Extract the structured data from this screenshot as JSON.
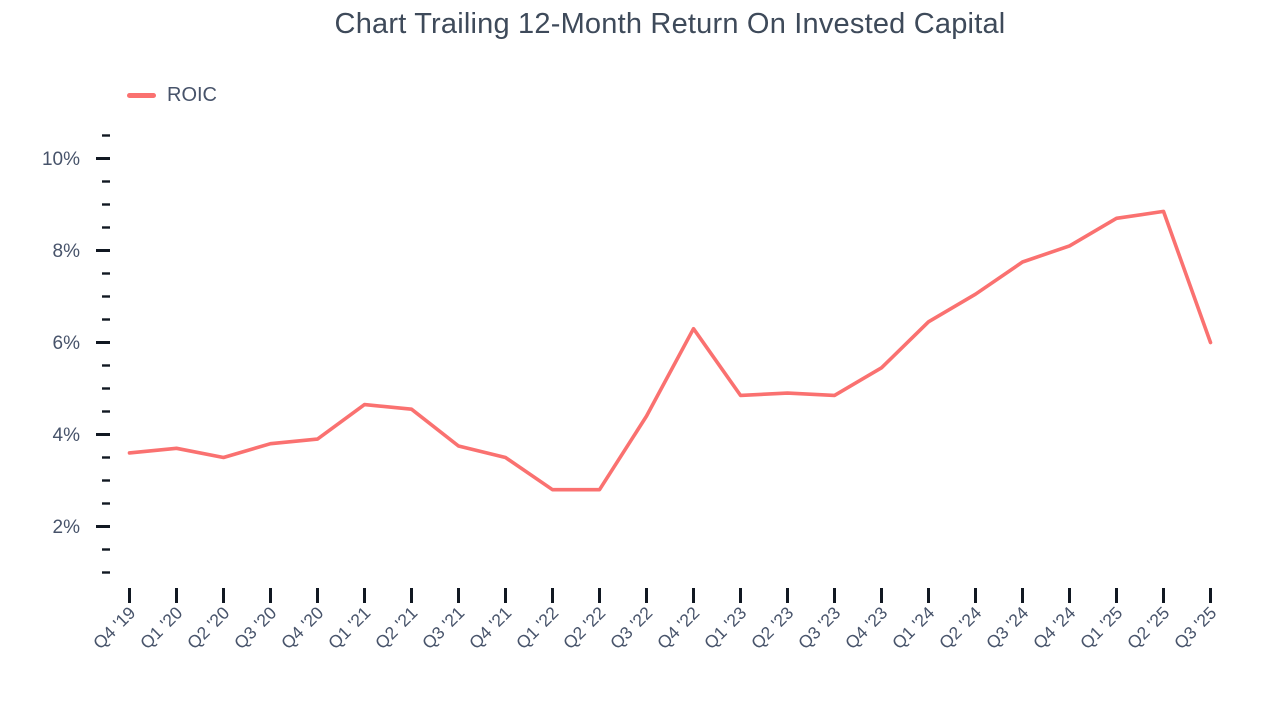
{
  "title": "Chart Trailing 12-Month Return On Invested Capital",
  "colors": {
    "line": "#fa7170",
    "axis_text": "#47536a",
    "title_text": "#3e4a5a",
    "tick_mark": "#111822",
    "background": "#ffffff"
  },
  "legend": {
    "label": "ROIC",
    "swatch": "line-swatch",
    "position": "top-left"
  },
  "chart_data": {
    "type": "line",
    "title": "Chart Trailing 12-Month Return On Invested Capital",
    "categories": [
      "Q4 '19",
      "Q1 '20",
      "Q2 '20",
      "Q3 '20",
      "Q4 '20",
      "Q1 '21",
      "Q2 '21",
      "Q3 '21",
      "Q4 '21",
      "Q1 '22",
      "Q2 '22",
      "Q3 '22",
      "Q4 '22",
      "Q1 '23",
      "Q2 '23",
      "Q3 '23",
      "Q4 '23",
      "Q1 '24",
      "Q2 '24",
      "Q3 '24",
      "Q4 '24",
      "Q1 '25",
      "Q2 '25",
      "Q3 '25"
    ],
    "series": [
      {
        "name": "ROIC",
        "color": "#fa7170",
        "unit": "%",
        "values": [
          3.6,
          3.7,
          3.5,
          3.8,
          3.9,
          4.65,
          4.55,
          3.75,
          3.5,
          2.8,
          2.8,
          4.4,
          6.3,
          4.85,
          4.9,
          4.85,
          5.45,
          6.45,
          7.05,
          7.75,
          8.1,
          8.7,
          8.85,
          6.0
        ]
      }
    ],
    "xlabel": "",
    "ylabel": "",
    "y_axis": {
      "unit": "%",
      "major_ticks": [
        {
          "value": 2,
          "label": "2%"
        },
        {
          "value": 4,
          "label": "4%"
        },
        {
          "value": 6,
          "label": "6%"
        },
        {
          "value": 8,
          "label": "8%"
        },
        {
          "value": 10,
          "label": "10%"
        }
      ],
      "minor_tick_step": 0.5,
      "tick_min": 1,
      "tick_max": 10.5
    },
    "ylim": [
      0.8,
      10.7
    ],
    "grid": false,
    "legend_position": "top-left"
  }
}
